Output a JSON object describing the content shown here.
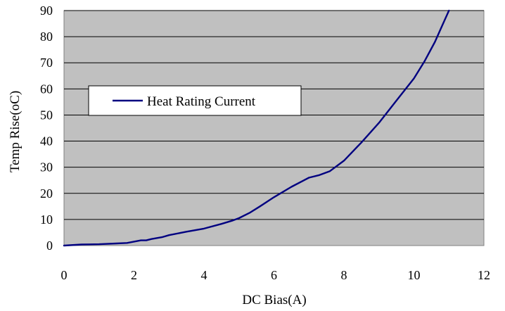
{
  "chart_data": {
    "type": "line",
    "title": "",
    "xlabel": "DC Bias(A)",
    "ylabel": "Temp Rise(oC)",
    "xlim": [
      0,
      12
    ],
    "ylim": [
      0,
      90
    ],
    "x_ticks": [
      "0",
      "2",
      "4",
      "6",
      "8",
      "10",
      "12"
    ],
    "y_ticks": [
      "0",
      "10",
      "20",
      "30",
      "40",
      "50",
      "60",
      "70",
      "80",
      "90"
    ],
    "grid": "horizontal",
    "plot_background": "#c0c0c0",
    "legend_position": "left-middle",
    "series": [
      {
        "name": "Heat Rating Current",
        "color": "#000080",
        "x": [
          0,
          0.5,
          1.0,
          1.5,
          1.8,
          2.0,
          2.2,
          2.35,
          2.5,
          2.8,
          3.0,
          3.5,
          4.0,
          4.5,
          4.8,
          5.0,
          5.3,
          5.6,
          6.0,
          6.5,
          7.0,
          7.3,
          7.6,
          8.0,
          8.5,
          9.0,
          9.5,
          10.0,
          10.3,
          10.6,
          10.8,
          11.0
        ],
        "y": [
          0,
          0.4,
          0.5,
          0.8,
          1.0,
          1.5,
          2.0,
          2.0,
          2.5,
          3.2,
          4.0,
          5.3,
          6.5,
          8.3,
          9.5,
          10.5,
          12.5,
          15.0,
          18.5,
          22.5,
          26.0,
          27.0,
          28.5,
          32.5,
          39.5,
          47.0,
          55.5,
          64.0,
          70.5,
          78.0,
          84.0,
          90.0
        ]
      }
    ]
  }
}
